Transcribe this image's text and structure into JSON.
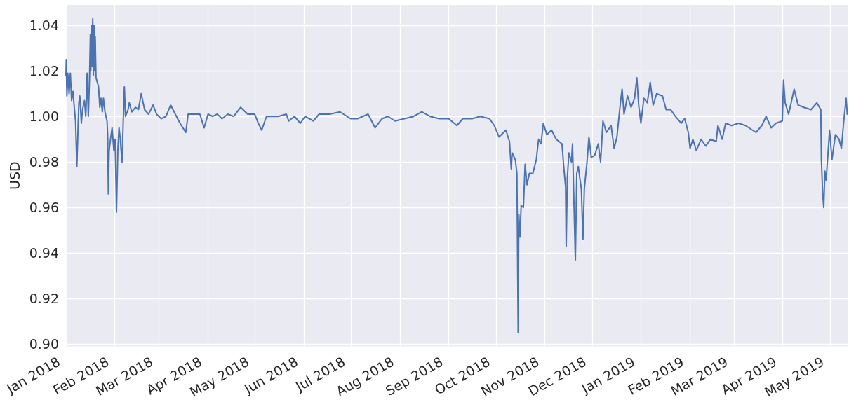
{
  "chart_data": {
    "type": "line",
    "ylabel": "USD",
    "color": "#4c72b0",
    "line_style": "solid",
    "grid": true,
    "x": [
      "2018-01-01",
      "2018-01-01T05:00",
      "2018-01-01T14:00",
      "2018-01-02T05:00",
      "2018-01-03",
      "2018-01-03T19:00",
      "2018-01-04T14:00",
      "2018-01-05T12:00",
      "2018-01-06T07:00",
      "2018-01-07T02:00",
      "2018-01-07T22:00",
      "2018-01-08T17:00",
      "2018-01-09T05:00",
      "2018-01-09T19:00",
      "2018-01-10T19:00",
      "2018-01-11T12:00",
      "2018-01-12T19:00",
      "2018-01-13T14:00",
      "2018-01-14T02:00",
      "2018-01-14T10:00",
      "2018-01-15T05:00",
      "2018-01-16",
      "2018-01-16T12:00",
      "2018-01-16T19:00",
      "2018-01-17T07:00",
      "2018-01-17T14:00",
      "2018-01-18",
      "2018-01-18T10:00",
      "2018-01-18T22:00",
      "2018-01-19T07:00",
      "2018-01-19T14:00",
      "2018-01-20T02:00",
      "2018-01-21T17:00",
      "2018-01-22T12:00",
      "2018-01-23T07:00",
      "2018-01-24T02:00",
      "2018-01-24T19:00",
      "2018-01-25T19:00",
      "2018-01-27T02:00",
      "2018-01-27T12:00",
      "2018-01-27T22:00",
      "2018-01-28T10:00",
      "2018-01-29T07:00",
      "2018-01-30T07:00",
      "2018-01-31T10:00",
      "2018-02-01T05:00",
      "2018-02-01T19:00",
      "2018-02-02T02:00",
      "2018-02-02T22:00",
      "2018-02-03T17:00",
      "2018-02-04T12:00",
      "2018-02-05T14:00",
      "2018-02-06T10:00",
      "2018-02-07T02:00",
      "2018-02-07T19:00",
      "2018-02-09T10:00",
      "2018-02-10T05:00",
      "2018-02-11T19:00",
      "2018-02-14T05:00",
      "2018-02-16",
      "2018-02-17T19:00",
      "2018-02-19T22:00",
      "2018-02-22T10:00",
      "2018-02-25T07:00",
      "2018-02-27T12:00",
      "2018-03-02T12:00",
      "2018-03-05T12:00",
      "2018-03-08T12:00",
      "2018-03-11T10:00",
      "2018-03-14T10:00",
      "2018-03-18T02:00",
      "2018-03-19T14:00",
      "2018-03-23T07:00",
      "2018-03-27",
      "2018-03-29T17:00",
      "2018-04-01T05:00",
      "2018-04-04T05:00",
      "2018-04-07T02:00",
      "2018-04-10T02:00",
      "2018-04-13T19:00",
      "2018-04-17T12:00",
      "2018-04-21T22:00",
      "2018-04-26T10:00",
      "2018-04-30T19:00",
      "2018-05-03T02:00",
      "2018-05-05T07:00",
      "2018-05-08T07:00",
      "2018-05-12T17:00",
      "2018-05-15T17:00",
      "2018-05-20T22:00",
      "2018-05-22T10:00",
      "2018-05-26T02:00",
      "2018-05-29T19:00",
      "2018-06-01T19:00",
      "2018-06-07",
      "2018-06-10T17:00",
      "2018-06-17T07:00",
      "2018-06-24",
      "2018-06-30T17:00",
      "2018-07-05T02:00",
      "2018-07-11T19:00",
      "2018-07-16T07:00",
      "2018-07-20T17:00",
      "2018-07-24T10:00",
      "2018-07-28T22:00",
      "2018-08-03T19:00",
      "2018-08-09T17:00",
      "2018-08-14T22:00",
      "2018-08-20T02:00",
      "2018-08-26",
      "2018-09-01",
      "2018-09-06T05:00",
      "2018-09-09T22:00",
      "2018-09-15T19:00",
      "2018-09-21",
      "2018-09-26T22:00",
      "2018-09-29T22:00",
      "2018-10-02T22:00",
      "2018-10-07T07:00",
      "2018-10-09T14:00",
      "2018-10-10T17:00",
      "2018-10-11T07:00",
      "2018-10-13T07:00",
      "2018-10-14T07:00",
      "2018-10-15T02:00",
      "2018-10-15T12:00",
      "2018-10-16T05:00",
      "2018-10-17",
      "2018-10-18T10:00",
      "2018-10-19T12:00",
      "2018-10-20T17:00",
      "2018-10-22T05:00",
      "2018-10-24T10:00",
      "2018-10-26T14:00",
      "2018-10-28T02:00",
      "2018-10-29T14:00",
      "2018-10-31T02:00",
      "2018-11-02T07:00",
      "2018-11-05T07:00",
      "2018-11-08T05:00",
      "2018-11-11T22:00",
      "2018-11-13",
      "2018-11-14T05:00",
      "2018-11-14T14:00",
      "2018-11-15T07:00",
      "2018-11-16T07:00",
      "2018-11-17T22:00",
      "2018-11-18T14:00",
      "2018-11-19T07:00",
      "2018-11-20T10:00",
      "2018-11-21T07:00",
      "2018-11-22T07:00",
      "2018-11-23T10:00",
      "2018-11-24T05:00",
      "2018-11-25T05:00",
      "2018-11-26T02:00",
      "2018-11-26T19:00",
      "2018-11-27T19:00",
      "2018-11-29",
      "2018-11-30T12:00",
      "2018-12-02T17:00",
      "2018-12-04T22:00",
      "2018-12-06T10:00",
      "2018-12-07T22:00",
      "2018-12-10T02:00",
      "2018-12-13T02:00",
      "2018-12-15",
      "2018-12-16T19:00",
      "2018-12-19",
      "2018-12-20T02:00",
      "2018-12-21T07:00",
      "2018-12-23T12:00",
      "2018-12-25T19:00",
      "2018-12-28",
      "2018-12-29T10:00",
      "2018-12-30T14:00",
      "2019-01-01",
      "2019-01-02T22:00",
      "2019-01-05T02:00",
      "2019-01-06T22:00",
      "2019-01-08T19:00",
      "2019-01-11",
      "2019-01-14T17:00",
      "2019-01-17",
      "2019-01-19T22:00",
      "2019-01-22T22:00",
      "2019-01-26T14:00",
      "2019-01-28T19:00",
      "2019-01-31T02:00",
      "2019-02-01T05:00",
      "2019-02-03",
      "2019-02-05T05:00",
      "2019-02-08T05:00",
      "2019-02-11T05:00",
      "2019-02-14T02:00",
      "2019-02-17T19:00",
      "2019-02-18T22:00",
      "2019-02-21T14:00",
      "2019-02-23T19:00",
      "2019-02-27T12:00",
      "2019-03-04",
      "2019-03-08T10:00",
      "2019-03-15T02:00",
      "2019-03-18T19:00",
      "2019-03-21T12:00",
      "2019-03-24T17:00",
      "2019-03-27T17:00",
      "2019-03-31T19:00",
      "2019-04-01T14:00",
      "2019-04-02T14:00",
      "2019-04-04T19:00",
      "2019-04-08T07:00",
      "2019-04-10T19:00",
      "2019-04-14T12:00",
      "2019-04-19",
      "2019-04-22T17:00",
      "2019-04-25T05:00",
      "2019-04-25T14:00",
      "2019-04-26T10:00",
      "2019-04-27T02:00",
      "2019-04-27T19:00",
      "2019-04-28T14:00",
      "2019-04-30T19:00",
      "2019-05-02T07:00",
      "2019-05-04T12:00",
      "2019-05-06T19:00",
      "2019-05-08T07:00",
      "2019-05-09T19:00",
      "2019-05-11T07:00",
      "2019-05-12"
    ],
    "values": [
      1.018,
      1.025,
      1.009,
      1.019,
      1.01,
      1.019,
      1.007,
      1.011,
      1.004,
      0.998,
      0.978,
      0.996,
      1.006,
      1.009,
      0.997,
      1.003,
      1.007,
      1.0,
      1.01,
      1.019,
      1.0,
      1.018,
      1.036,
      1.02,
      1.04,
      1.022,
      1.043,
      1.018,
      1.04,
      1.02,
      1.035,
      1.017,
      1.013,
      1.004,
      1.008,
      1.002,
      1.008,
      1.002,
      0.998,
      0.992,
      0.966,
      0.985,
      0.99,
      0.995,
      0.985,
      0.99,
      0.97,
      0.958,
      0.985,
      0.995,
      0.99,
      0.98,
      0.999,
      1.013,
      1.0,
      1.003,
      1.006,
      1.002,
      1.004,
      1.003,
      1.01,
      1.003,
      1.001,
      1.005,
      1.001,
      0.999,
      1.0,
      1.005,
      1.001,
      0.997,
      0.993,
      1.001,
      1.001,
      1.001,
      0.995,
      1.001,
      1.0,
      1.001,
      0.999,
      1.001,
      1.0,
      1.004,
      1.001,
      1.001,
      0.997,
      0.994,
      1.0,
      1.0,
      1.0,
      1.001,
      0.998,
      1.0,
      0.997,
      1.0,
      0.998,
      1.001,
      1.001,
      1.002,
      0.999,
      0.999,
      1.001,
      0.995,
      0.999,
      1.0,
      0.998,
      0.999,
      1.0,
      1.002,
      1.0,
      0.999,
      0.999,
      0.996,
      0.999,
      0.999,
      1.0,
      0.999,
      0.996,
      0.991,
      0.994,
      0.989,
      0.977,
      0.984,
      0.981,
      0.975,
      0.905,
      0.957,
      0.947,
      0.961,
      0.96,
      0.979,
      0.97,
      0.975,
      0.975,
      0.981,
      0.99,
      0.988,
      0.997,
      0.992,
      0.994,
      0.99,
      0.988,
      0.978,
      0.969,
      0.943,
      0.973,
      0.984,
      0.98,
      0.988,
      0.968,
      0.937,
      0.975,
      0.978,
      0.972,
      0.968,
      0.946,
      0.968,
      0.973,
      0.98,
      0.991,
      0.982,
      0.983,
      0.988,
      0.98,
      0.998,
      0.993,
      0.996,
      0.986,
      0.991,
      1.006,
      1.012,
      1.001,
      1.009,
      1.004,
      1.008,
      1.017,
      1.005,
      0.997,
      1.008,
      1.006,
      1.015,
      1.005,
      1.01,
      1.009,
      1.003,
      1.003,
      1.0,
      0.997,
      0.999,
      0.993,
      0.986,
      0.99,
      0.985,
      0.99,
      0.987,
      0.99,
      0.989,
      0.996,
      0.99,
      0.997,
      0.996,
      0.997,
      0.996,
      0.993,
      0.996,
      1.0,
      0.995,
      0.997,
      0.998,
      1.016,
      1.006,
      1.001,
      1.012,
      1.005,
      1.004,
      1.003,
      1.006,
      1.003,
      0.981,
      0.966,
      0.96,
      0.976,
      0.972,
      0.994,
      0.981,
      0.992,
      0.99,
      0.986,
      0.998,
      1.008,
      1.001
    ],
    "xlim": [
      "2018-01-01",
      "2019-05-12T16:00"
    ],
    "ylim": [
      0.899,
      1.049
    ],
    "xticks": [
      {
        "value": "2018-01",
        "label": "Jan 2018"
      },
      {
        "value": "2018-02",
        "label": "Feb 2018"
      },
      {
        "value": "2018-03",
        "label": "Mar 2018"
      },
      {
        "value": "2018-04",
        "label": "Apr 2018"
      },
      {
        "value": "2018-05",
        "label": "May 2018"
      },
      {
        "value": "2018-06",
        "label": "Jun 2018"
      },
      {
        "value": "2018-07",
        "label": "Jul 2018"
      },
      {
        "value": "2018-08",
        "label": "Aug 2018"
      },
      {
        "value": "2018-09",
        "label": "Sep 2018"
      },
      {
        "value": "2018-10",
        "label": "Oct 2018"
      },
      {
        "value": "2018-11",
        "label": "Nov 2018"
      },
      {
        "value": "2018-12",
        "label": "Dec 2018"
      },
      {
        "value": "2019-01",
        "label": "Jan 2019"
      },
      {
        "value": "2019-02",
        "label": "Feb 2019"
      },
      {
        "value": "2019-03",
        "label": "Mar 2019"
      },
      {
        "value": "2019-04",
        "label": "Apr 2019"
      },
      {
        "value": "2019-05",
        "label": "May 2019"
      }
    ],
    "yticks": [
      {
        "value": 0.9,
        "label": "0.90"
      },
      {
        "value": 0.92,
        "label": "0.92"
      },
      {
        "value": 0.94,
        "label": "0.94"
      },
      {
        "value": 0.96,
        "label": "0.96"
      },
      {
        "value": 0.98,
        "label": "0.98"
      },
      {
        "value": 1.0,
        "label": "1.00"
      },
      {
        "value": 1.02,
        "label": "1.02"
      },
      {
        "value": 1.04,
        "label": "1.04"
      }
    ]
  }
}
